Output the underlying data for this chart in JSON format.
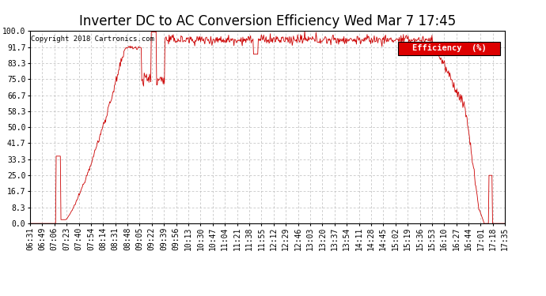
{
  "title": "Inverter DC to AC Conversion Efficiency Wed Mar 7 17:45",
  "copyright": "Copyright 2018 Cartronics.com",
  "legend_label": "Efficiency  (%)",
  "legend_bg": "#dd0000",
  "legend_fg": "#ffffff",
  "line_color": "#cc0000",
  "bg_color": "#ffffff",
  "plot_bg": "#ffffff",
  "grid_color": "#bbbbbb",
  "ylim": [
    0.0,
    100.0
  ],
  "yticks": [
    0.0,
    8.3,
    16.7,
    25.0,
    33.3,
    41.7,
    50.0,
    58.3,
    66.7,
    75.0,
    83.3,
    91.7,
    100.0
  ],
  "xtick_labels": [
    "06:31",
    "06:49",
    "07:06",
    "07:23",
    "07:40",
    "07:54",
    "08:14",
    "08:31",
    "08:48",
    "09:05",
    "09:22",
    "09:39",
    "09:56",
    "10:13",
    "10:30",
    "10:47",
    "11:04",
    "11:21",
    "11:38",
    "11:55",
    "12:12",
    "12:29",
    "12:46",
    "13:03",
    "13:20",
    "13:37",
    "13:54",
    "14:11",
    "14:28",
    "14:45",
    "15:02",
    "15:19",
    "15:36",
    "15:53",
    "16:10",
    "16:27",
    "16:44",
    "17:01",
    "17:18",
    "17:35"
  ],
  "title_fontsize": 12,
  "copyright_fontsize": 6.5,
  "tick_fontsize": 7,
  "legend_fontsize": 7.5
}
